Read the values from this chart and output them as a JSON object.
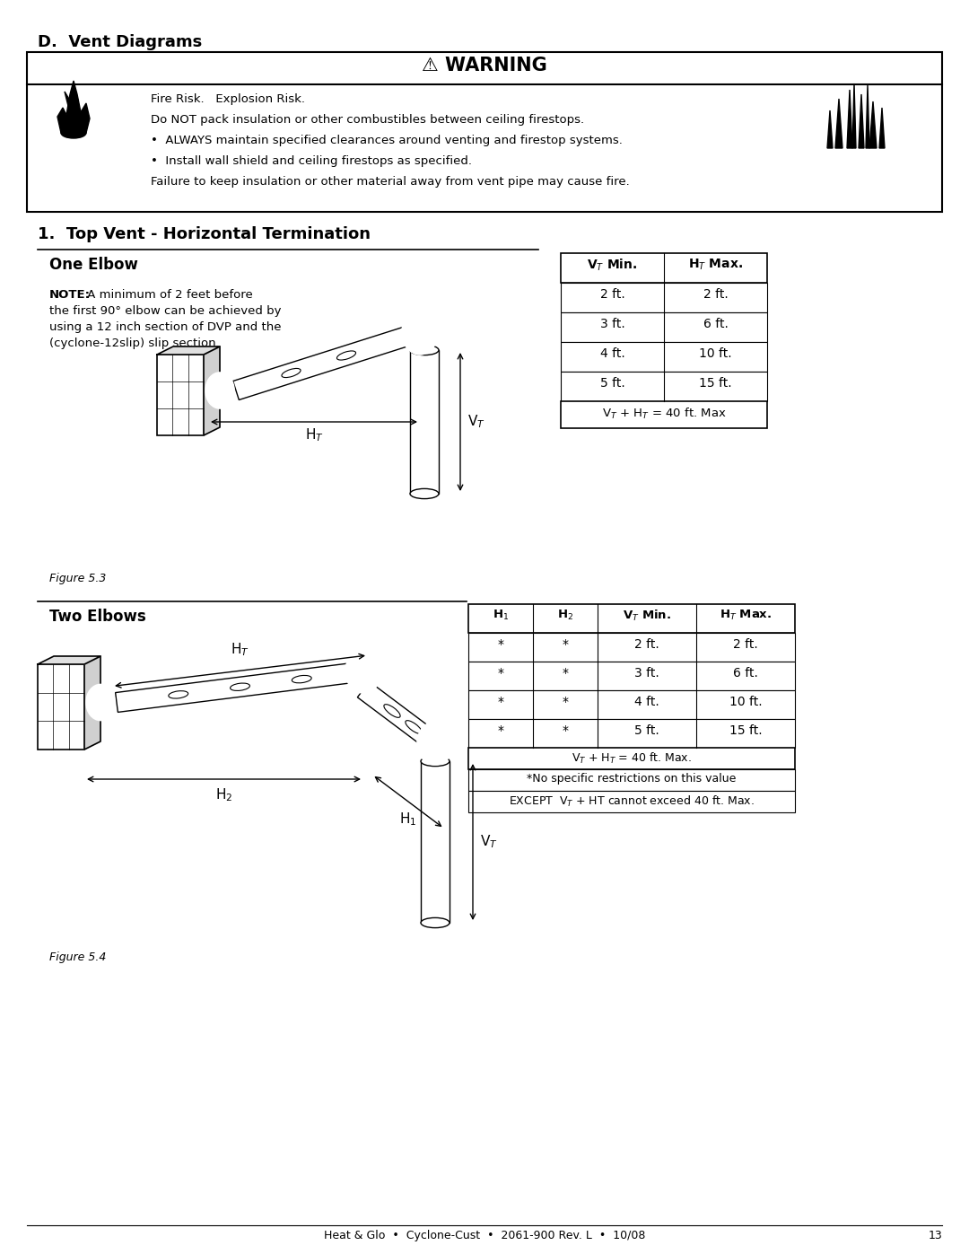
{
  "page_title": "D.  Vent Diagrams",
  "warning_title": "⚠ WARNING",
  "warning_lines": [
    "Fire Risk.   Explosion Risk.",
    "Do NOT pack insulation or other combustibles between ceiling firestops.",
    "•  ALWAYS maintain specified clearances around venting and firestop systems.",
    "•  Install wall shield and ceiling firestops as specified.",
    "Failure to keep insulation or other material away from vent pipe may cause fire."
  ],
  "section_title": "1.  Top Vent - Horizontal Termination",
  "one_elbow_title": "One Elbow",
  "one_elbow_note_bold": "NOTE:",
  "one_elbow_note": " A minimum of 2 feet before\nthe first 90° elbow can be achieved by\nusing a 12 inch section of DVP and the\n(cyclone-12slip) slip section.",
  "one_elbow_figure": "Figure 5.3",
  "one_elbow_table_headers": [
    "V$_T$ Min.",
    "H$_T$ Max."
  ],
  "one_elbow_table_rows": [
    [
      "2 ft.",
      "2 ft."
    ],
    [
      "3 ft.",
      "6 ft."
    ],
    [
      "4 ft.",
      "10 ft."
    ],
    [
      "5 ft.",
      "15 ft."
    ]
  ],
  "one_elbow_table_footer": "V$_T$ + H$_T$ = 40 ft. Max",
  "two_elbows_title": "Two Elbows",
  "two_elbows_figure": "Figure 5.4",
  "two_elbows_table_headers": [
    "H$_1$",
    "H$_2$",
    "V$_T$ Min.",
    "H$_T$ Max."
  ],
  "two_elbows_table_rows": [
    [
      "*",
      "*",
      "2 ft.",
      "2 ft."
    ],
    [
      "*",
      "*",
      "3 ft.",
      "6 ft."
    ],
    [
      "*",
      "*",
      "4 ft.",
      "10 ft."
    ],
    [
      "*",
      "*",
      "5 ft.",
      "15 ft."
    ]
  ],
  "two_elbows_table_footer1": "V$_T$ + H$_T$ = 40 ft. Max.",
  "two_elbows_table_footer2": "*No specific restrictions on this value",
  "two_elbows_table_footer3": "EXCEPT  V$_T$ + HT cannot exceed 40 ft. Max.",
  "footer_text": "Heat & Glo  •  Cyclone-Cust  •  2061-900 Rev. L  •  10/08",
  "footer_page": "13",
  "bg_color": "#ffffff",
  "text_color": "#000000"
}
